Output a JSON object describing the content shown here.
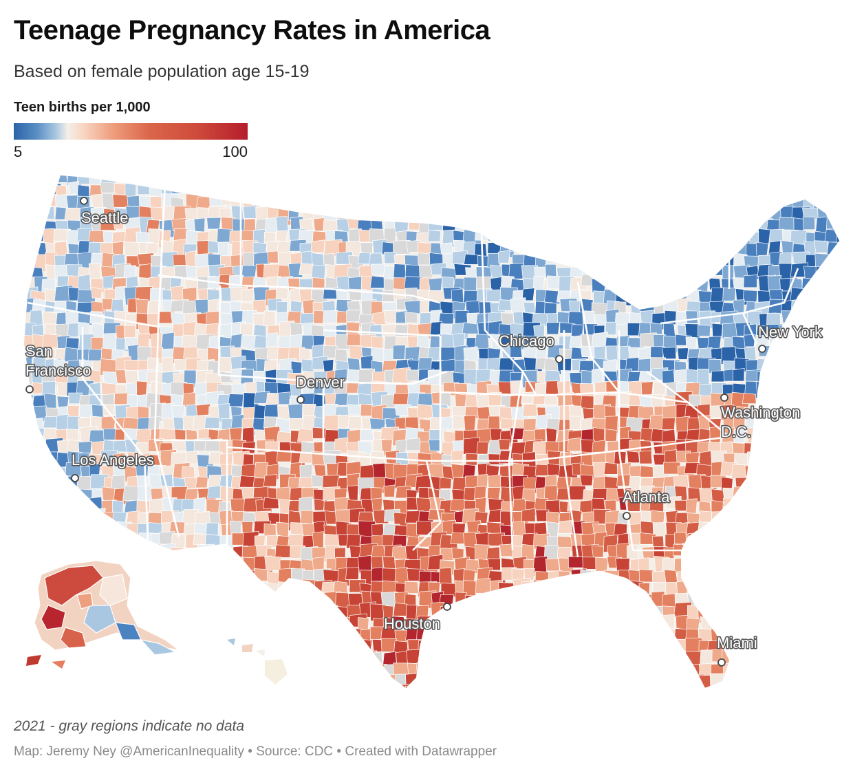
{
  "title": "Teenage Pregnancy Rates in America",
  "subtitle": "Based on female population age 15-19",
  "legend": {
    "title": "Teen births per 1,000",
    "min_label": "5",
    "max_label": "100",
    "min_value": 5,
    "max_value": 100,
    "colors": [
      "#2b63a8",
      "#a9c7e1",
      "#f3efe9",
      "#ee9f7f",
      "#da6649",
      "#b51d2c"
    ]
  },
  "cities": [
    {
      "name": "Seattle",
      "label": "Seattle"
    },
    {
      "name": "San Francisco",
      "label_line1": "San",
      "label_line2": "Francisco"
    },
    {
      "name": "Los Angeles",
      "label": "Los Angeles"
    },
    {
      "name": "Denver",
      "label": "Denver"
    },
    {
      "name": "Chicago",
      "label": "Chicago"
    },
    {
      "name": "New York",
      "label": "New York"
    },
    {
      "name": "Washington D.C.",
      "label_line1": "Washington",
      "label_line2": "D.C."
    },
    {
      "name": "Atlanta",
      "label": "Atlanta"
    },
    {
      "name": "Houston",
      "label": "Houston"
    },
    {
      "name": "Miami",
      "label": "Miami"
    }
  ],
  "colors": {
    "no_data": "#d9d9d9",
    "low": "#3a73b5",
    "mid": "#f3efe9",
    "high": "#c23a33"
  },
  "notes": {
    "footnote": "2021 - gray regions indicate no data",
    "credit": "Map: Jeremy Ney @AmericanInequality • Source: CDC • Created with Datawrapper"
  }
}
